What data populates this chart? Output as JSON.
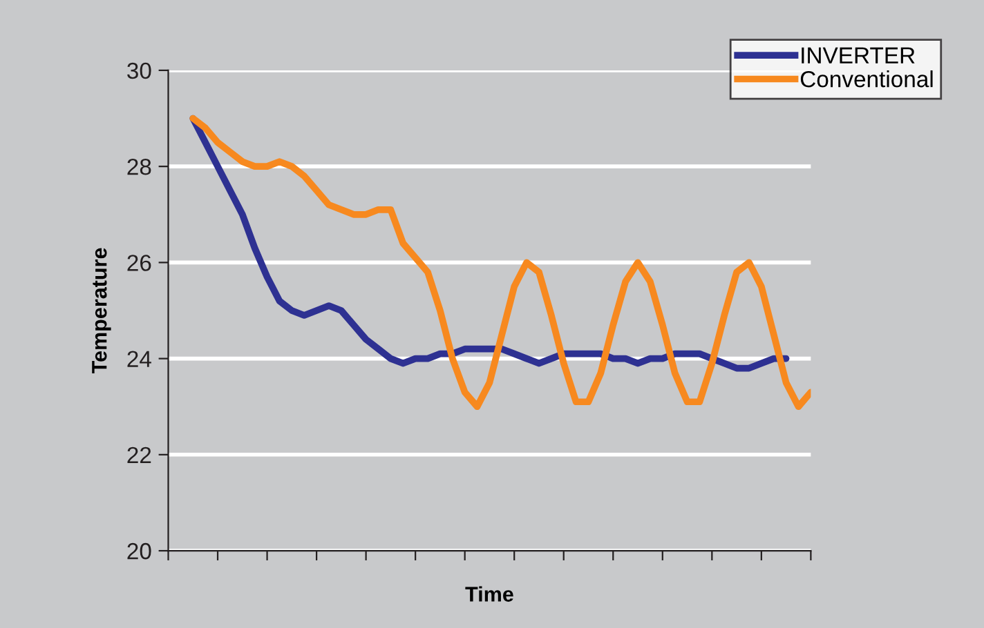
{
  "chart_data": {
    "type": "line",
    "xlabel": "Time",
    "ylabel": "Temperature",
    "categories": [
      null,
      null,
      null,
      null,
      null,
      null,
      null,
      null,
      null,
      null,
      null,
      null,
      null,
      null,
      null,
      null,
      null,
      null,
      null,
      null,
      null,
      null,
      null,
      null,
      null,
      null,
      null,
      null,
      null,
      null,
      null,
      null,
      null,
      null,
      null,
      null,
      null,
      null,
      null,
      null,
      null,
      null,
      null,
      null,
      null,
      null,
      null,
      null,
      null,
      null,
      null
    ],
    "ylim": [
      20,
      30
    ],
    "yticks": [
      20,
      22,
      24,
      26,
      28,
      30
    ],
    "grid": "y",
    "legend": "top right",
    "marker": "none",
    "line_style": "solid",
    "series": [
      {
        "name": "INVERTER",
        "color": "#2e3192",
        "values": [
          29,
          28.5,
          28.0,
          27.5,
          27.0,
          26.3,
          25.7,
          25.2,
          25.0,
          24.9,
          25.0,
          25.1,
          25.0,
          24.7,
          24.4,
          24.2,
          24.0,
          23.9,
          24.0,
          24.0,
          24.1,
          24.1,
          24.2,
          24.2,
          24.2,
          24.2,
          24.1,
          24.0,
          23.9,
          24.0,
          24.1,
          24.1,
          24.1,
          24.1,
          24.0,
          24.0,
          23.9,
          24.0,
          24.0,
          24.1,
          24.1,
          24.1,
          24.0,
          23.9,
          23.8,
          23.8,
          23.9,
          24.0,
          24.0,
          null,
          null
        ]
      },
      {
        "name": "Conventional",
        "color": "#f7891f",
        "values": [
          29,
          28.8,
          28.5,
          28.3,
          28.1,
          28.0,
          28.0,
          28.1,
          28.0,
          27.8,
          27.5,
          27.2,
          27.1,
          27.0,
          27.0,
          27.1,
          27.1,
          26.4,
          26.1,
          25.8,
          25.0,
          24.0,
          23.3,
          23.0,
          23.5,
          24.5,
          25.5,
          26.0,
          25.8,
          24.9,
          23.9,
          23.1,
          23.1,
          23.7,
          24.7,
          25.6,
          26.0,
          25.6,
          24.7,
          23.7,
          23.1,
          23.1,
          23.9,
          24.9,
          25.8,
          26.0,
          25.5,
          24.5,
          23.5,
          23.0,
          23.3
        ]
      }
    ]
  }
}
